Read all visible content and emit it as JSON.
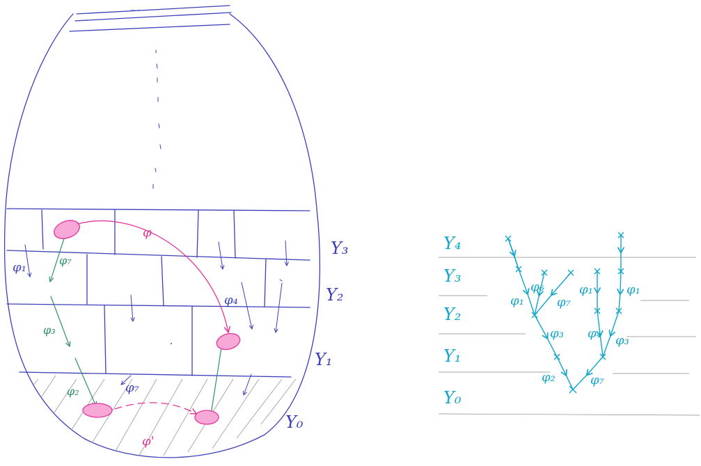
{
  "left_diagram": {
    "level_labels": [
      {
        "id": "y3",
        "text": "Y₃"
      },
      {
        "id": "y2",
        "text": "Y₂"
      },
      {
        "id": "y1",
        "text": "Y₁"
      },
      {
        "id": "y0",
        "text": "Y₀"
      }
    ],
    "map_labels": {
      "phi1": "φ₁",
      "phi7a": "φ₇",
      "phi3": "φ₃",
      "phi2": "φ₂",
      "phi7b": "φ₇",
      "phi4": "φ₄",
      "phi": "φ",
      "phi_prime": "φ'"
    }
  },
  "right_diagram": {
    "level_labels": [
      {
        "id": "y4",
        "text": "Y₄"
      },
      {
        "id": "y3",
        "text": "Y₃"
      },
      {
        "id": "y2",
        "text": "Y₂"
      },
      {
        "id": "y1",
        "text": "Y₁"
      },
      {
        "id": "y0",
        "text": "Y₀"
      }
    ],
    "map_labels": {
      "phi1a": "φ₁",
      "phi6": "φ₆",
      "phi7a": "φ₇",
      "phi1b": "φ₁",
      "phi1c": "φ₁",
      "phi3a": "φ₃",
      "phi4": "φ₄",
      "phi3b": "φ₃",
      "phi2": "φ₂",
      "phi7b": "φ₇"
    }
  },
  "colors": {
    "ink": "#3b3fb8",
    "green": "#2f8f6a",
    "pink": "#e0359b",
    "cyan": "#12a6c8"
  }
}
